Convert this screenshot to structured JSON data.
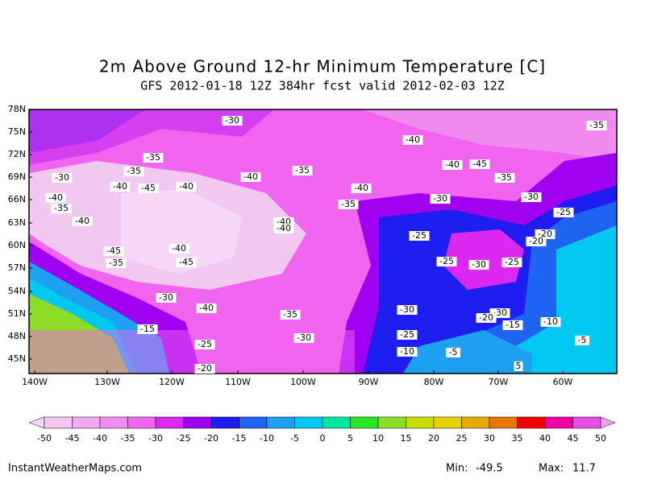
{
  "header": {
    "title": "2m Above Ground 12-hr Minimum Temperature [C]",
    "subtitle": "GFS 2012-01-18 12Z 384hr fcst valid 2012-02-03 12Z"
  },
  "map": {
    "lat_labels": [
      "78N",
      "75N",
      "72N",
      "69N",
      "66N",
      "63N",
      "60N",
      "57N",
      "54N",
      "51N",
      "48N",
      "45N"
    ],
    "lon_labels": [
      "140W",
      "130W",
      "120W",
      "110W",
      "100W",
      "90W",
      "80W",
      "70W",
      "60W"
    ],
    "contour_labels": [
      "-30",
      "-35",
      "-40",
      "-35",
      "-35",
      "-35",
      "-40",
      "-45",
      "-30",
      "-40",
      "-35",
      "-40",
      "-45",
      "-40",
      "-40",
      "-40",
      "-30",
      "-30",
      "-35",
      "-35",
      "-25",
      "-40",
      "-40",
      "-40",
      "-20",
      "-20",
      "-25",
      "-40",
      "-45",
      "-45",
      "-35",
      "-25",
      "-30",
      "-25",
      "-30",
      "-40",
      "-35",
      "-30",
      "-30",
      "-20",
      "-15",
      "-15",
      "-10",
      "-30",
      "-25",
      "-5",
      "-25",
      "-10",
      "-5",
      "-20",
      "5"
    ]
  },
  "colorbar": {
    "labels": [
      "-50",
      "-45",
      "-40",
      "-35",
      "-30",
      "-25",
      "-20",
      "-15",
      "-10",
      "-5",
      "0",
      "5",
      "10",
      "15",
      "20",
      "25",
      "30",
      "35",
      "40",
      "45",
      "50"
    ],
    "colors": [
      "#f5d8f5",
      "#f0c8f0",
      "#f0aaf0",
      "#f08cf0",
      "#f064f0",
      "#dc28f0",
      "#a000f0",
      "#1e1ef0",
      "#1e64f0",
      "#1ea0f0",
      "#00c8f0",
      "#00e6a0",
      "#28e628",
      "#8cdc28",
      "#c8dc00",
      "#e6d200",
      "#e6aa00",
      "#e67800",
      "#f00000",
      "#f000a0",
      "#e650e6",
      "#eba0eb"
    ]
  },
  "footer": {
    "source": "InstantWeatherMaps.com",
    "min_label": "Min:",
    "min_value": "-49.5",
    "max_label": "Max:",
    "max_value": "11.7"
  }
}
